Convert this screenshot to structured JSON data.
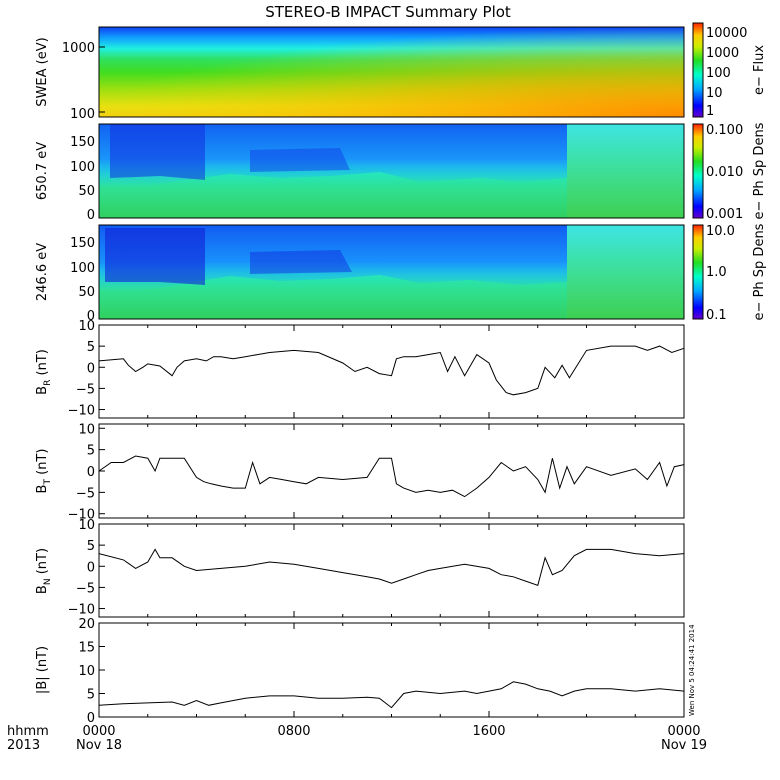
{
  "title": "STEREO-B IMPACT Summary Plot",
  "stamp": "Wen Nov  5 04:24:41 2014",
  "time_axis": {
    "corner_line1": "hhmm",
    "corner_line2": "2013",
    "ticks": [
      {
        "x": 0,
        "label": "0000",
        "sub": "Nov 18"
      },
      {
        "x": 8,
        "label": "0800",
        "sub": ""
      },
      {
        "x": 16,
        "label": "1600",
        "sub": ""
      },
      {
        "x": 24,
        "label": "0000",
        "sub": "Nov 19"
      }
    ]
  },
  "chart_data": [
    {
      "type": "heatmap",
      "ylabel": "SWEA (eV)",
      "yscale": "log",
      "ylim": [
        90,
        2000
      ],
      "yticks": [
        {
          "v": 100,
          "label": "100"
        },
        {
          "v": 1000,
          "label": "1000"
        }
      ],
      "colorbar": {
        "label": "e− Flux",
        "scale": "log",
        "ticks": [
          {
            "v": 1,
            "label": "1"
          },
          {
            "v": 10,
            "label": "10"
          },
          {
            "v": 100,
            "label": "100"
          },
          {
            "v": 1000,
            "label": "1000"
          },
          {
            "v": 10000,
            "label": "10000"
          }
        ]
      }
    },
    {
      "type": "heatmap",
      "ylabel": "650.7 eV",
      "ylim": [
        0,
        180
      ],
      "yticks": [
        {
          "v": 0,
          "label": "0"
        },
        {
          "v": 50,
          "label": "50"
        },
        {
          "v": 100,
          "label": "100"
        },
        {
          "v": 150,
          "label": "150"
        }
      ],
      "colorbar": {
        "label": "e− Ph Sp Dens",
        "scale": "log",
        "ticks": [
          {
            "v": 0.001,
            "label": "0.001"
          },
          {
            "v": 0.01,
            "label": "0.010"
          },
          {
            "v": 0.1,
            "label": "0.100"
          }
        ]
      }
    },
    {
      "type": "heatmap",
      "ylabel": "246.6 eV",
      "ylim": [
        0,
        180
      ],
      "yticks": [
        {
          "v": 0,
          "label": "0"
        },
        {
          "v": 50,
          "label": "50"
        },
        {
          "v": 100,
          "label": "100"
        },
        {
          "v": 150,
          "label": "150"
        }
      ],
      "colorbar": {
        "label": "e− Ph Sp Dens",
        "scale": "log",
        "ticks": [
          {
            "v": 0.1,
            "label": "0.1"
          },
          {
            "v": 1,
            "label": "1.0"
          },
          {
            "v": 10,
            "label": "10.0"
          }
        ]
      }
    },
    {
      "type": "line",
      "ylabel": "B",
      "ylabel_sub": "R",
      "ylabel_unit": " (nT)",
      "ylim": [
        -12,
        10
      ],
      "yticks": [
        {
          "v": -10,
          "label": "−10"
        },
        {
          "v": -5,
          "label": "−5"
        },
        {
          "v": 0,
          "label": "0"
        },
        {
          "v": 5,
          "label": "5"
        },
        {
          "v": 10,
          "label": "10"
        }
      ],
      "x": [
        0,
        1,
        1.2,
        1.5,
        1.8,
        2,
        2.5,
        3,
        3.2,
        3.5,
        4,
        4.4,
        4.7,
        5,
        5.5,
        6,
        6.5,
        7,
        8,
        9,
        10,
        10.5,
        11,
        11.5,
        12,
        12.2,
        12.5,
        13,
        13.5,
        14,
        14.3,
        14.6,
        15,
        15.5,
        16,
        16.3,
        16.7,
        17,
        17.5,
        18,
        18.3,
        18.7,
        19,
        19.3,
        20,
        21,
        22,
        22.5,
        23,
        23.5,
        24
      ],
      "y": [
        1.5,
        2,
        0.5,
        -1,
        0,
        0.8,
        0.3,
        -2,
        0,
        1.5,
        2,
        1.5,
        2.5,
        2.5,
        2,
        2.5,
        3,
        3.5,
        4,
        3.5,
        1,
        -1,
        0,
        -1.5,
        -2,
        2,
        2.5,
        2.5,
        3,
        3.5,
        -1,
        2.5,
        -2,
        3,
        1,
        -3,
        -6,
        -6.5,
        -6,
        -5,
        0,
        -2.5,
        0.5,
        -2.5,
        4,
        5,
        5,
        4,
        5,
        3.5,
        4.5
      ]
    },
    {
      "type": "line",
      "ylabel": "B",
      "ylabel_sub": "T",
      "ylabel_unit": " (nT)",
      "ylim": [
        -11,
        11
      ],
      "yticks": [
        {
          "v": -10,
          "label": "−10"
        },
        {
          "v": -5,
          "label": "−5"
        },
        {
          "v": 0,
          "label": "0"
        },
        {
          "v": 5,
          "label": "5"
        },
        {
          "v": 10,
          "label": "10"
        }
      ],
      "x": [
        0,
        0.5,
        1,
        1.5,
        2,
        2.3,
        2.5,
        3,
        3.5,
        4,
        4.3,
        4.6,
        5,
        5.5,
        6,
        6.3,
        6.6,
        7,
        7.5,
        8,
        8.5,
        9,
        10,
        11,
        11.5,
        12,
        12.2,
        12.5,
        13,
        13.5,
        14,
        14.5,
        15,
        15.5,
        16,
        16.5,
        17,
        17.5,
        18,
        18.3,
        18.6,
        18.9,
        19.2,
        19.5,
        20,
        21,
        22,
        22.5,
        23,
        23.3,
        23.6,
        24
      ],
      "y": [
        0,
        2,
        2,
        3.5,
        3,
        0,
        3,
        3,
        3,
        -1.5,
        -2.5,
        -3,
        -3.5,
        -4,
        -4,
        2,
        -3,
        -1.5,
        -2,
        -2.5,
        -3,
        -1.5,
        -2,
        -1.5,
        3,
        3,
        -3,
        -4,
        -5,
        -4.5,
        -5,
        -4.5,
        -6,
        -4,
        -1.5,
        2,
        0,
        1,
        -2,
        -5,
        3,
        -4,
        1,
        -3,
        1,
        -1,
        0.5,
        -2,
        2,
        -3.5,
        1,
        1.5
      ]
    },
    {
      "type": "line",
      "ylabel": "B",
      "ylabel_sub": "N",
      "ylabel_unit": " (nT)",
      "ylim": [
        -12,
        10
      ],
      "yticks": [
        {
          "v": -10,
          "label": "−10"
        },
        {
          "v": -5,
          "label": "−5"
        },
        {
          "v": 0,
          "label": "0"
        },
        {
          "v": 5,
          "label": "5"
        },
        {
          "v": 10,
          "label": "10"
        }
      ],
      "x": [
        0,
        1,
        1.5,
        2,
        2.3,
        2.5,
        3,
        3.5,
        4,
        5,
        6,
        7,
        8,
        9,
        9.5,
        10,
        11,
        11.5,
        12,
        12.5,
        13,
        13.5,
        14,
        15,
        16,
        16.5,
        17,
        17.5,
        18,
        18.3,
        18.6,
        19,
        19.5,
        20,
        21,
        22,
        23,
        24
      ],
      "y": [
        3,
        1.5,
        -0.5,
        1,
        4,
        2,
        2,
        0,
        -1,
        -0.5,
        0,
        1,
        0.5,
        -0.5,
        -1,
        -1.5,
        -2.5,
        -3,
        -4,
        -3,
        -2,
        -1,
        -0.5,
        0.5,
        -0.5,
        -2,
        -2.5,
        -3.5,
        -4.5,
        2,
        -2,
        -1,
        2.5,
        4,
        4,
        3,
        2.5,
        3
      ]
    },
    {
      "type": "line",
      "ylabel": "|B| (nT)",
      "ylim": [
        0,
        20
      ],
      "yticks": [
        {
          "v": 0,
          "label": "0"
        },
        {
          "v": 5,
          "label": "5"
        },
        {
          "v": 10,
          "label": "10"
        },
        {
          "v": 15,
          "label": "15"
        },
        {
          "v": 20,
          "label": "20"
        }
      ],
      "x": [
        0,
        1,
        2,
        3,
        3.5,
        4,
        4.5,
        5,
        6,
        7,
        8,
        9,
        10,
        11,
        11.5,
        12,
        12.5,
        13,
        14,
        15,
        15.5,
        16,
        16.5,
        17,
        17.5,
        18,
        18.5,
        19,
        19.5,
        20,
        21,
        22,
        23,
        24
      ],
      "y": [
        2.5,
        2.8,
        3,
        3.2,
        2.5,
        3.5,
        2.5,
        3,
        4,
        4.5,
        4.5,
        4,
        4,
        4.2,
        4,
        2,
        5,
        5.5,
        5,
        5.5,
        5,
        5.5,
        6,
        7.5,
        7,
        6,
        5.5,
        4.5,
        5.5,
        6,
        6,
        5.5,
        6,
        5.5
      ]
    }
  ]
}
